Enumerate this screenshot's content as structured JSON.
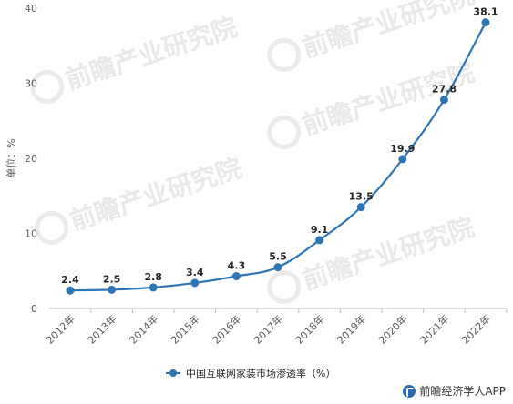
{
  "chart_data": {
    "type": "line",
    "categories": [
      "2012年",
      "2013年",
      "2014年",
      "2015年",
      "2016年",
      "2017年",
      "2018年",
      "2019年",
      "2020年",
      "2021年",
      "2022年"
    ],
    "series": [
      {
        "name": "中国互联网家装市场渗透率（%）",
        "values": [
          2.4,
          2.5,
          2.8,
          3.4,
          4.3,
          5.5,
          9.1,
          13.5,
          19.9,
          27.8,
          38.1
        ]
      }
    ],
    "ylabel": "单位：%",
    "ylim": [
      0,
      40
    ],
    "yticks": [
      0,
      10,
      20,
      30,
      40
    ],
    "grid": false,
    "legend": "bottom",
    "colors": {
      "series": "#2e75b6"
    }
  },
  "watermark": {
    "text": "前瞻产业研究院"
  },
  "footer": {
    "brand": "前瞻经济学人APP"
  }
}
